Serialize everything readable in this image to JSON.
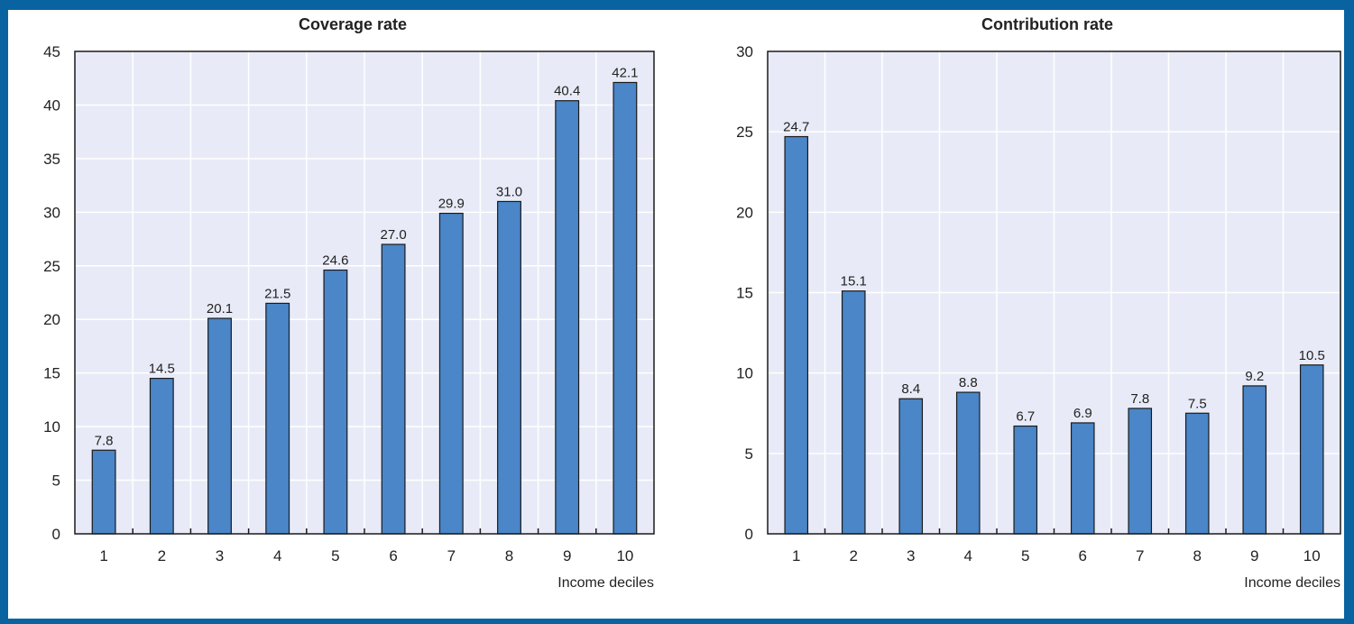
{
  "chart_data": [
    {
      "type": "bar",
      "title": "Coverage rate",
      "xlabel": "Income deciles",
      "ylabel": "",
      "categories": [
        "1",
        "2",
        "3",
        "4",
        "5",
        "6",
        "7",
        "8",
        "9",
        "10"
      ],
      "values": [
        7.8,
        14.5,
        20.1,
        21.5,
        24.6,
        27.0,
        29.9,
        31.0,
        40.4,
        42.1
      ],
      "data_labels": [
        "7.8",
        "14.5",
        "20.1",
        "21.5",
        "24.6",
        "27.0",
        "29.9",
        "31.0",
        "40.4",
        "42.1"
      ],
      "ylim": [
        0,
        45
      ],
      "yticks": [
        0,
        5,
        10,
        15,
        20,
        25,
        30,
        35,
        40,
        45
      ],
      "grid": true,
      "bar_color": "#4a86c8",
      "plot_background": "#e8ebf7"
    },
    {
      "type": "bar",
      "title": "Contribution rate",
      "xlabel": "Income deciles",
      "ylabel": "",
      "categories": [
        "1",
        "2",
        "3",
        "4",
        "5",
        "6",
        "7",
        "8",
        "9",
        "10"
      ],
      "values": [
        24.7,
        15.1,
        8.4,
        8.8,
        6.7,
        6.9,
        7.8,
        7.5,
        9.2,
        10.5
      ],
      "data_labels": [
        "24.7",
        "15.1",
        "8.4",
        "8.8",
        "6.7",
        "6.9",
        "7.8",
        "7.5",
        "9.2",
        "10.5"
      ],
      "ylim": [
        0,
        30
      ],
      "yticks": [
        0,
        5,
        10,
        15,
        20,
        25,
        30
      ],
      "grid": true,
      "bar_color": "#4a86c8",
      "plot_background": "#e8ebf7"
    }
  ],
  "colors": {
    "frame_border": "#0a63a1",
    "bar_outline": "#1a1a1a",
    "grid": "#ffffff",
    "axis": "#1a1a1a"
  }
}
